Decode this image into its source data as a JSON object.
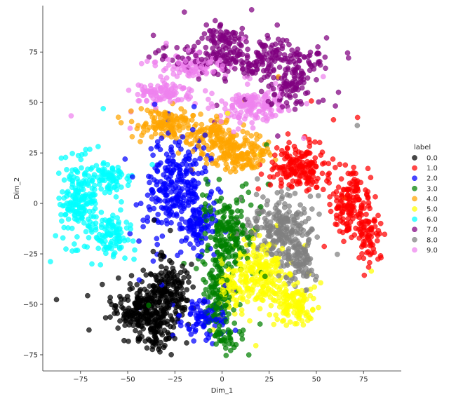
{
  "chart_data": {
    "type": "scatter",
    "title": "",
    "xlabel": "Dim_1",
    "ylabel": "Dim_2",
    "xlim": [
      -95,
      95
    ],
    "ylim": [
      -83,
      98
    ],
    "xticks": [
      -75,
      -50,
      -25,
      0,
      25,
      50,
      75
    ],
    "yticks": [
      -75,
      -50,
      -25,
      0,
      25,
      50,
      75
    ],
    "xtick_labels": [
      "−75",
      "−50",
      "−25",
      "0",
      "25",
      "50",
      "75"
    ],
    "ytick_labels": [
      "−75",
      "−50",
      "−25",
      "0",
      "25",
      "50",
      "75"
    ],
    "grid": false,
    "legend": {
      "title": "label",
      "placement": "right",
      "entries": [
        "0.0",
        "1.0",
        "2.0",
        "3.0",
        "4.0",
        "5.0",
        "6.0",
        "7.0",
        "8.0",
        "9.0"
      ]
    },
    "series": [
      {
        "name": "0.0",
        "color": "#000000",
        "clusters": [
          {
            "cx": -42,
            "cy": -53,
            "rx": 12,
            "ry": 9,
            "n": 220
          },
          {
            "cx": -30,
            "cy": -45,
            "rx": 9,
            "ry": 13,
            "n": 160
          },
          {
            "cx": -35,
            "cy": -65,
            "rx": 6,
            "ry": 5,
            "n": 40
          }
        ]
      },
      {
        "name": "1.0",
        "color": "#ff0000",
        "clusters": [
          {
            "cx": 42,
            "cy": 17,
            "rx": 11,
            "ry": 9,
            "n": 170
          },
          {
            "cx": 68,
            "cy": 0,
            "rx": 8,
            "ry": 12,
            "n": 150
          },
          {
            "cx": 77,
            "cy": -18,
            "rx": 5,
            "ry": 8,
            "n": 60
          }
        ]
      },
      {
        "name": "2.0",
        "color": "#0000ff",
        "clusters": [
          {
            "cx": -25,
            "cy": 7,
            "rx": 12,
            "ry": 18,
            "n": 260
          },
          {
            "cx": -12,
            "cy": -10,
            "rx": 6,
            "ry": 10,
            "n": 80
          },
          {
            "cx": -10,
            "cy": -58,
            "rx": 9,
            "ry": 7,
            "n": 90
          }
        ]
      },
      {
        "name": "3.0",
        "color": "#008000",
        "clusters": [
          {
            "cx": 3,
            "cy": -15,
            "rx": 10,
            "ry": 14,
            "n": 210
          },
          {
            "cx": -3,
            "cy": -45,
            "rx": 6,
            "ry": 11,
            "n": 100
          },
          {
            "cx": 2,
            "cy": -65,
            "rx": 5,
            "ry": 6,
            "n": 40
          }
        ]
      },
      {
        "name": "4.0",
        "color": "#ffa500",
        "clusters": [
          {
            "cx": -30,
            "cy": 40,
            "rx": 12,
            "ry": 5,
            "n": 110
          },
          {
            "cx": -5,
            "cy": 33,
            "rx": 10,
            "ry": 6,
            "n": 120
          },
          {
            "cx": 10,
            "cy": 24,
            "rx": 12,
            "ry": 6,
            "n": 130
          }
        ]
      },
      {
        "name": "5.0",
        "color": "#ffff00",
        "clusters": [
          {
            "cx": 20,
            "cy": -35,
            "rx": 10,
            "ry": 12,
            "n": 200
          },
          {
            "cx": 38,
            "cy": -50,
            "rx": 9,
            "ry": 8,
            "n": 120
          },
          {
            "cx": 5,
            "cy": -40,
            "rx": 5,
            "ry": 6,
            "n": 50
          }
        ]
      },
      {
        "name": "6.0",
        "color": "#00ffff",
        "clusters": [
          {
            "cx": -75,
            "cy": 2,
            "rx": 9,
            "ry": 15,
            "n": 200
          },
          {
            "cx": -58,
            "cy": -15,
            "rx": 7,
            "ry": 8,
            "n": 90
          },
          {
            "cx": -60,
            "cy": 12,
            "rx": 6,
            "ry": 6,
            "n": 60
          }
        ]
      },
      {
        "name": "7.0",
        "color": "#800080",
        "clusters": [
          {
            "cx": 15,
            "cy": 72,
            "rx": 30,
            "ry": 6,
            "n": 260
          },
          {
            "cx": 0,
            "cy": 83,
            "rx": 8,
            "ry": 4,
            "n": 50
          },
          {
            "cx": 35,
            "cy": 58,
            "rx": 10,
            "ry": 7,
            "n": 90
          }
        ]
      },
      {
        "name": "8.0",
        "color": "#808080",
        "clusters": [
          {
            "cx": 30,
            "cy": -12,
            "rx": 12,
            "ry": 11,
            "n": 220
          },
          {
            "cx": 42,
            "cy": -28,
            "rx": 6,
            "ry": 8,
            "n": 80
          }
        ]
      },
      {
        "name": "9.0",
        "color": "#ee82ee",
        "clusters": [
          {
            "cx": -30,
            "cy": 55,
            "rx": 12,
            "ry": 4,
            "n": 100
          },
          {
            "cx": 15,
            "cy": 48,
            "rx": 12,
            "ry": 6,
            "n": 140
          },
          {
            "cx": -15,
            "cy": 68,
            "rx": 14,
            "ry": 4,
            "n": 90
          }
        ]
      }
    ]
  }
}
